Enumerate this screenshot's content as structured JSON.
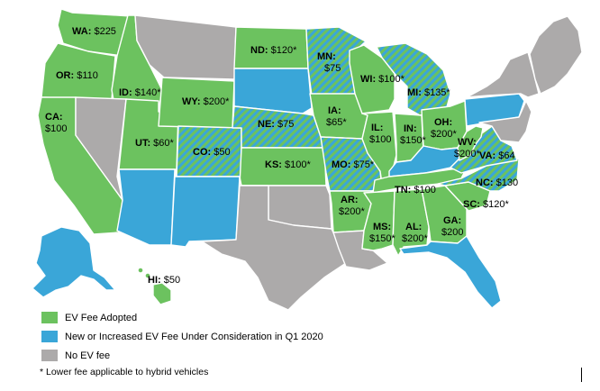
{
  "colors": {
    "adopted": "#6cc25f",
    "consideration": "#3aa6d8",
    "none": "#acaaaa"
  },
  "legend": [
    {
      "key": "adopted",
      "label": "EV Fee Adopted"
    },
    {
      "key": "consideration",
      "label": "New or Increased EV Fee Under Consideration in Q1 2020"
    },
    {
      "key": "none",
      "label": "No EV fee"
    }
  ],
  "footnote": "* Lower fee applicable to hybrid vehicles",
  "states": [
    {
      "id": "WA",
      "status": "adopted",
      "abbr": "WA:",
      "fee": "$225"
    },
    {
      "id": "OR",
      "status": "adopted",
      "abbr": "OR:",
      "fee": "$110"
    },
    {
      "id": "CA",
      "status": "adopted",
      "abbr": "CA:",
      "fee": "$100"
    },
    {
      "id": "ID",
      "status": "adopted",
      "abbr": "ID:",
      "fee": "$140*"
    },
    {
      "id": "NV",
      "status": "none"
    },
    {
      "id": "UT",
      "status": "adopted",
      "abbr": "UT:",
      "fee": "$60*"
    },
    {
      "id": "AZ",
      "status": "consideration"
    },
    {
      "id": "MT",
      "status": "none"
    },
    {
      "id": "WY",
      "status": "adopted",
      "abbr": "WY:",
      "fee": "$200*"
    },
    {
      "id": "CO",
      "status": "adopted_consideration",
      "abbr": "CO:",
      "fee": "$50"
    },
    {
      "id": "NM",
      "status": "consideration"
    },
    {
      "id": "ND",
      "status": "adopted",
      "abbr": "ND:",
      "fee": "$120*"
    },
    {
      "id": "SD",
      "status": "consideration"
    },
    {
      "id": "NE",
      "status": "adopted_consideration",
      "abbr": "NE:",
      "fee": "$75"
    },
    {
      "id": "KS",
      "status": "adopted",
      "abbr": "KS:",
      "fee": "$100*"
    },
    {
      "id": "OK",
      "status": "none"
    },
    {
      "id": "TX",
      "status": "none"
    },
    {
      "id": "MN",
      "status": "adopted_consideration",
      "abbr": "MN:",
      "fee": "$75"
    },
    {
      "id": "IA",
      "status": "adopted",
      "abbr": "IA:",
      "fee": "$65*"
    },
    {
      "id": "MO",
      "status": "adopted_consideration",
      "abbr": "MO:",
      "fee": "$75*"
    },
    {
      "id": "AR",
      "status": "adopted",
      "abbr": "AR:",
      "fee": "$200*"
    },
    {
      "id": "LA",
      "status": "none"
    },
    {
      "id": "WI",
      "status": "adopted",
      "abbr": "WI:",
      "fee": "$100*"
    },
    {
      "id": "IL",
      "status": "adopted",
      "abbr": "IL:",
      "fee": "$100"
    },
    {
      "id": "MI",
      "status": "adopted_consideration",
      "abbr": "MI:",
      "fee": "$135*"
    },
    {
      "id": "IN",
      "status": "adopted",
      "abbr": "IN:",
      "fee": "$150*"
    },
    {
      "id": "OH",
      "status": "adopted",
      "abbr": "OH:",
      "fee": "$200*"
    },
    {
      "id": "KY",
      "status": "consideration"
    },
    {
      "id": "TN",
      "status": "adopted",
      "abbr": "TN:",
      "fee": "$100"
    },
    {
      "id": "MS",
      "status": "adopted",
      "abbr": "MS:",
      "fee": "$150*"
    },
    {
      "id": "AL",
      "status": "adopted",
      "abbr": "AL:",
      "fee": "$200*"
    },
    {
      "id": "GA",
      "status": "adopted",
      "abbr": "GA:",
      "fee": "$200"
    },
    {
      "id": "FL",
      "status": "consideration"
    },
    {
      "id": "SC",
      "status": "adopted",
      "abbr": "SC:",
      "fee": "$120*"
    },
    {
      "id": "NC",
      "status": "adopted_consideration",
      "abbr": "NC:",
      "fee": "$130"
    },
    {
      "id": "VA",
      "status": "adopted_consideration",
      "abbr": "VA:",
      "fee": "$64"
    },
    {
      "id": "WV",
      "status": "adopted",
      "abbr": "WV:",
      "fee": "$200*"
    },
    {
      "id": "PA",
      "status": "consideration"
    },
    {
      "id": "NY",
      "status": "none"
    },
    {
      "id": "NE_states",
      "status": "none"
    },
    {
      "id": "MDDE",
      "status": "none"
    },
    {
      "id": "AK",
      "status": "consideration"
    },
    {
      "id": "HI",
      "status": "adopted",
      "abbr": "HI:",
      "fee": "$50"
    }
  ]
}
